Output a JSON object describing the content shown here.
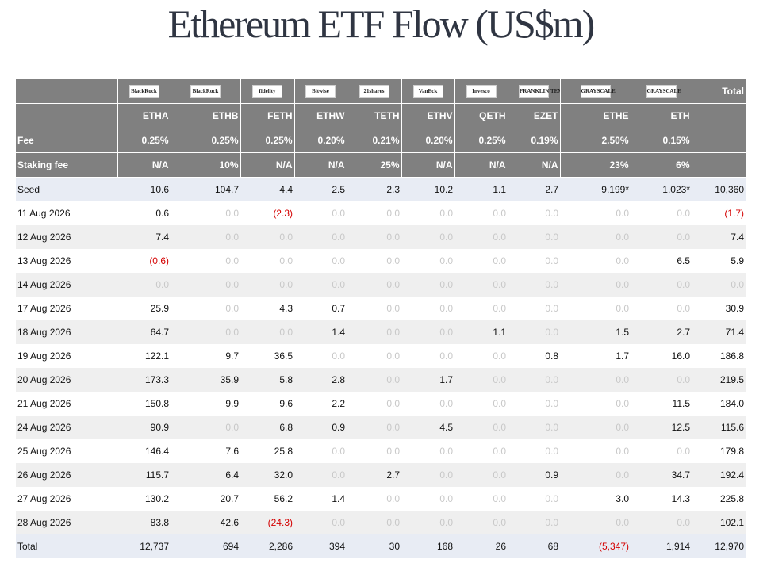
{
  "title": "Ethereum ETF Flow (US$m)",
  "colors": {
    "header_bg": "#808080",
    "seed_total_bg": "#e8ecf4",
    "negative": "#d40000",
    "zero": "#c8c8c8"
  },
  "logos": [
    "BlackRock",
    "BlackRock",
    "fidelity",
    "Bitwise",
    "21shares",
    "VanEck",
    "Invesco",
    "FRANKLIN TEMPLETON",
    "GRAYSCALE",
    "GRAYSCALE"
  ],
  "total_header": "Total",
  "tickers": [
    "ETHA",
    "ETHB",
    "FETH",
    "ETHW",
    "TETH",
    "ETHV",
    "QETH",
    "EZET",
    "ETHE",
    "ETH"
  ],
  "fee": {
    "label": "Fee",
    "values": [
      "0.25%",
      "0.25%",
      "0.25%",
      "0.20%",
      "0.21%",
      "0.20%",
      "0.25%",
      "0.19%",
      "2.50%",
      "0.15%"
    ]
  },
  "staking": {
    "label": "Staking fee",
    "values": [
      "N/A",
      "10%",
      "N/A",
      "N/A",
      "25%",
      "N/A",
      "N/A",
      "N/A",
      "23%",
      "6%"
    ]
  },
  "rows": [
    {
      "label": "Seed",
      "values": [
        "10.6",
        "104.7",
        "4.4",
        "2.5",
        "2.3",
        "10.2",
        "1.1",
        "2.7",
        "9,199*",
        "1,023*",
        "10,360"
      ]
    },
    {
      "label": "11 Aug 2026",
      "values": [
        "0.6",
        "0.0",
        "(2.3)",
        "0.0",
        "0.0",
        "0.0",
        "0.0",
        "0.0",
        "0.0",
        "0.0",
        "(1.7)"
      ]
    },
    {
      "label": "12 Aug 2026",
      "values": [
        "7.4",
        "0.0",
        "0.0",
        "0.0",
        "0.0",
        "0.0",
        "0.0",
        "0.0",
        "0.0",
        "0.0",
        "7.4"
      ]
    },
    {
      "label": "13 Aug 2026",
      "values": [
        "(0.6)",
        "0.0",
        "0.0",
        "0.0",
        "0.0",
        "0.0",
        "0.0",
        "0.0",
        "0.0",
        "6.5",
        "5.9"
      ]
    },
    {
      "label": "14 Aug 2026",
      "values": [
        "0.0",
        "0.0",
        "0.0",
        "0.0",
        "0.0",
        "0.0",
        "0.0",
        "0.0",
        "0.0",
        "0.0",
        "0.0"
      ]
    },
    {
      "label": "17 Aug 2026",
      "values": [
        "25.9",
        "0.0",
        "4.3",
        "0.7",
        "0.0",
        "0.0",
        "0.0",
        "0.0",
        "0.0",
        "0.0",
        "30.9"
      ]
    },
    {
      "label": "18 Aug 2026",
      "values": [
        "64.7",
        "0.0",
        "0.0",
        "1.4",
        "0.0",
        "0.0",
        "1.1",
        "0.0",
        "1.5",
        "2.7",
        "71.4"
      ]
    },
    {
      "label": "19 Aug 2026",
      "values": [
        "122.1",
        "9.7",
        "36.5",
        "0.0",
        "0.0",
        "0.0",
        "0.0",
        "0.8",
        "1.7",
        "16.0",
        "186.8"
      ]
    },
    {
      "label": "20 Aug 2026",
      "values": [
        "173.3",
        "35.9",
        "5.8",
        "2.8",
        "0.0",
        "1.7",
        "0.0",
        "0.0",
        "0.0",
        "0.0",
        "219.5"
      ]
    },
    {
      "label": "21 Aug 2026",
      "values": [
        "150.8",
        "9.9",
        "9.6",
        "2.2",
        "0.0",
        "0.0",
        "0.0",
        "0.0",
        "0.0",
        "11.5",
        "184.0"
      ]
    },
    {
      "label": "24 Aug 2026",
      "values": [
        "90.9",
        "0.0",
        "6.8",
        "0.9",
        "0.0",
        "4.5",
        "0.0",
        "0.0",
        "0.0",
        "12.5",
        "115.6"
      ]
    },
    {
      "label": "25 Aug 2026",
      "values": [
        "146.4",
        "7.6",
        "25.8",
        "0.0",
        "0.0",
        "0.0",
        "0.0",
        "0.0",
        "0.0",
        "0.0",
        "179.8"
      ]
    },
    {
      "label": "26 Aug 2026",
      "values": [
        "115.7",
        "6.4",
        "32.0",
        "0.0",
        "2.7",
        "0.0",
        "0.0",
        "0.9",
        "0.0",
        "34.7",
        "192.4"
      ]
    },
    {
      "label": "27 Aug 2026",
      "values": [
        "130.2",
        "20.7",
        "56.2",
        "1.4",
        "0.0",
        "0.0",
        "0.0",
        "0.0",
        "3.0",
        "14.3",
        "225.8"
      ]
    },
    {
      "label": "28 Aug 2026",
      "values": [
        "83.8",
        "42.6",
        "(24.3)",
        "0.0",
        "0.0",
        "0.0",
        "0.0",
        "0.0",
        "0.0",
        "0.0",
        "102.1"
      ]
    },
    {
      "label": "Total",
      "values": [
        "12,737",
        "694",
        "2,286",
        "394",
        "30",
        "168",
        "26",
        "68",
        "(5,347)",
        "1,914",
        "12,970"
      ]
    }
  ]
}
